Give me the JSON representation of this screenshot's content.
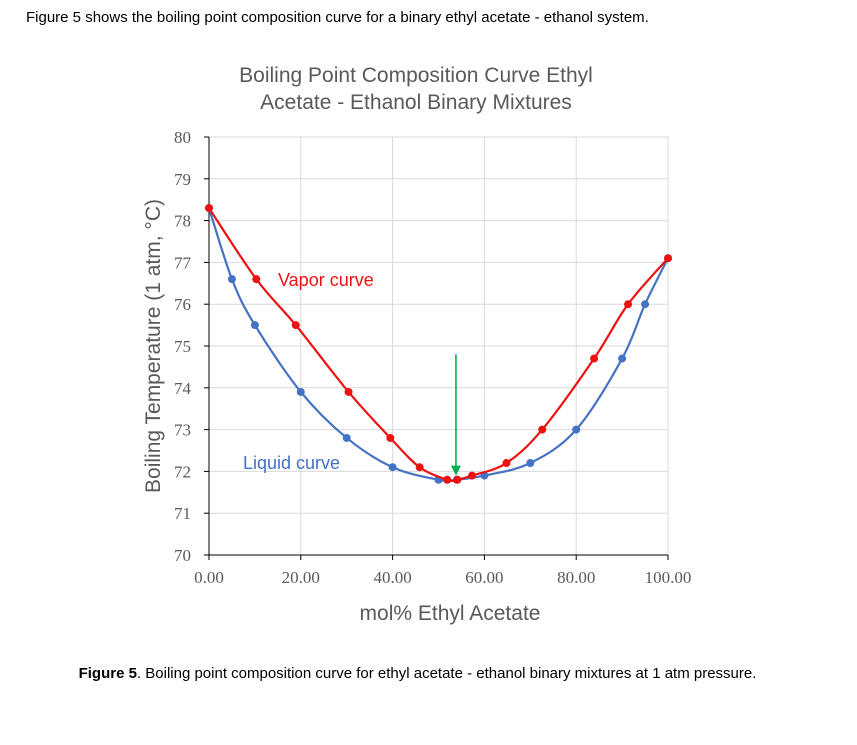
{
  "intro_text": "Figure 5 shows the boiling point composition curve for a binary ethyl acetate - ethanol system.",
  "caption": {
    "label": "Figure 5",
    "text": ". Boiling point composition curve for ethyl acetate - ethanol binary mixtures at 1 atm pressure."
  },
  "chart_data": {
    "type": "line",
    "title_lines": [
      "Boiling Point Composition Curve Ethyl",
      "Acetate - Ethanol Binary Mixtures"
    ],
    "xlabel": "mol% Ethyl Acetate",
    "ylabel": "Boiling Temperature (1 atm, °C)",
    "xlim": [
      0,
      100
    ],
    "ylim": [
      70,
      80
    ],
    "xticks": [
      "0.00",
      "20.00",
      "40.00",
      "60.00",
      "80.00",
      "100.00"
    ],
    "yticks": [
      "70",
      "71",
      "72",
      "73",
      "74",
      "75",
      "76",
      "77",
      "78",
      "79",
      "80"
    ],
    "grid": true,
    "series": [
      {
        "name": "Vapor curve",
        "color": "#ee1111",
        "points": [
          [
            0,
            78.3
          ],
          [
            10.3,
            76.6
          ],
          [
            18.9,
            75.5
          ],
          [
            30.4,
            73.9
          ],
          [
            39.5,
            72.8
          ],
          [
            45.9,
            72.1
          ],
          [
            51.9,
            71.8
          ],
          [
            54.1,
            71.8
          ],
          [
            57.3,
            71.9
          ],
          [
            64.8,
            72.2
          ],
          [
            72.6,
            73.0
          ],
          [
            83.9,
            74.7
          ],
          [
            91.3,
            76.0
          ],
          [
            100,
            77.1
          ]
        ]
      },
      {
        "name": "Liquid curve",
        "color": "#4472c4",
        "points": [
          [
            0,
            78.3
          ],
          [
            5.0,
            76.6
          ],
          [
            10.0,
            75.5
          ],
          [
            20.0,
            73.9
          ],
          [
            30.0,
            72.8
          ],
          [
            40.0,
            72.1
          ],
          [
            50.0,
            71.8
          ],
          [
            54.0,
            71.8
          ],
          [
            60.0,
            71.9
          ],
          [
            70.0,
            72.2
          ],
          [
            80.0,
            73.0
          ],
          [
            90.0,
            74.7
          ],
          [
            95.0,
            76.0
          ],
          [
            100,
            77.1
          ]
        ]
      }
    ],
    "annotation": {
      "type": "arrow",
      "color": "#00b050",
      "from": [
        53.8,
        74.8
      ],
      "to": [
        53.8,
        71.9
      ]
    }
  }
}
